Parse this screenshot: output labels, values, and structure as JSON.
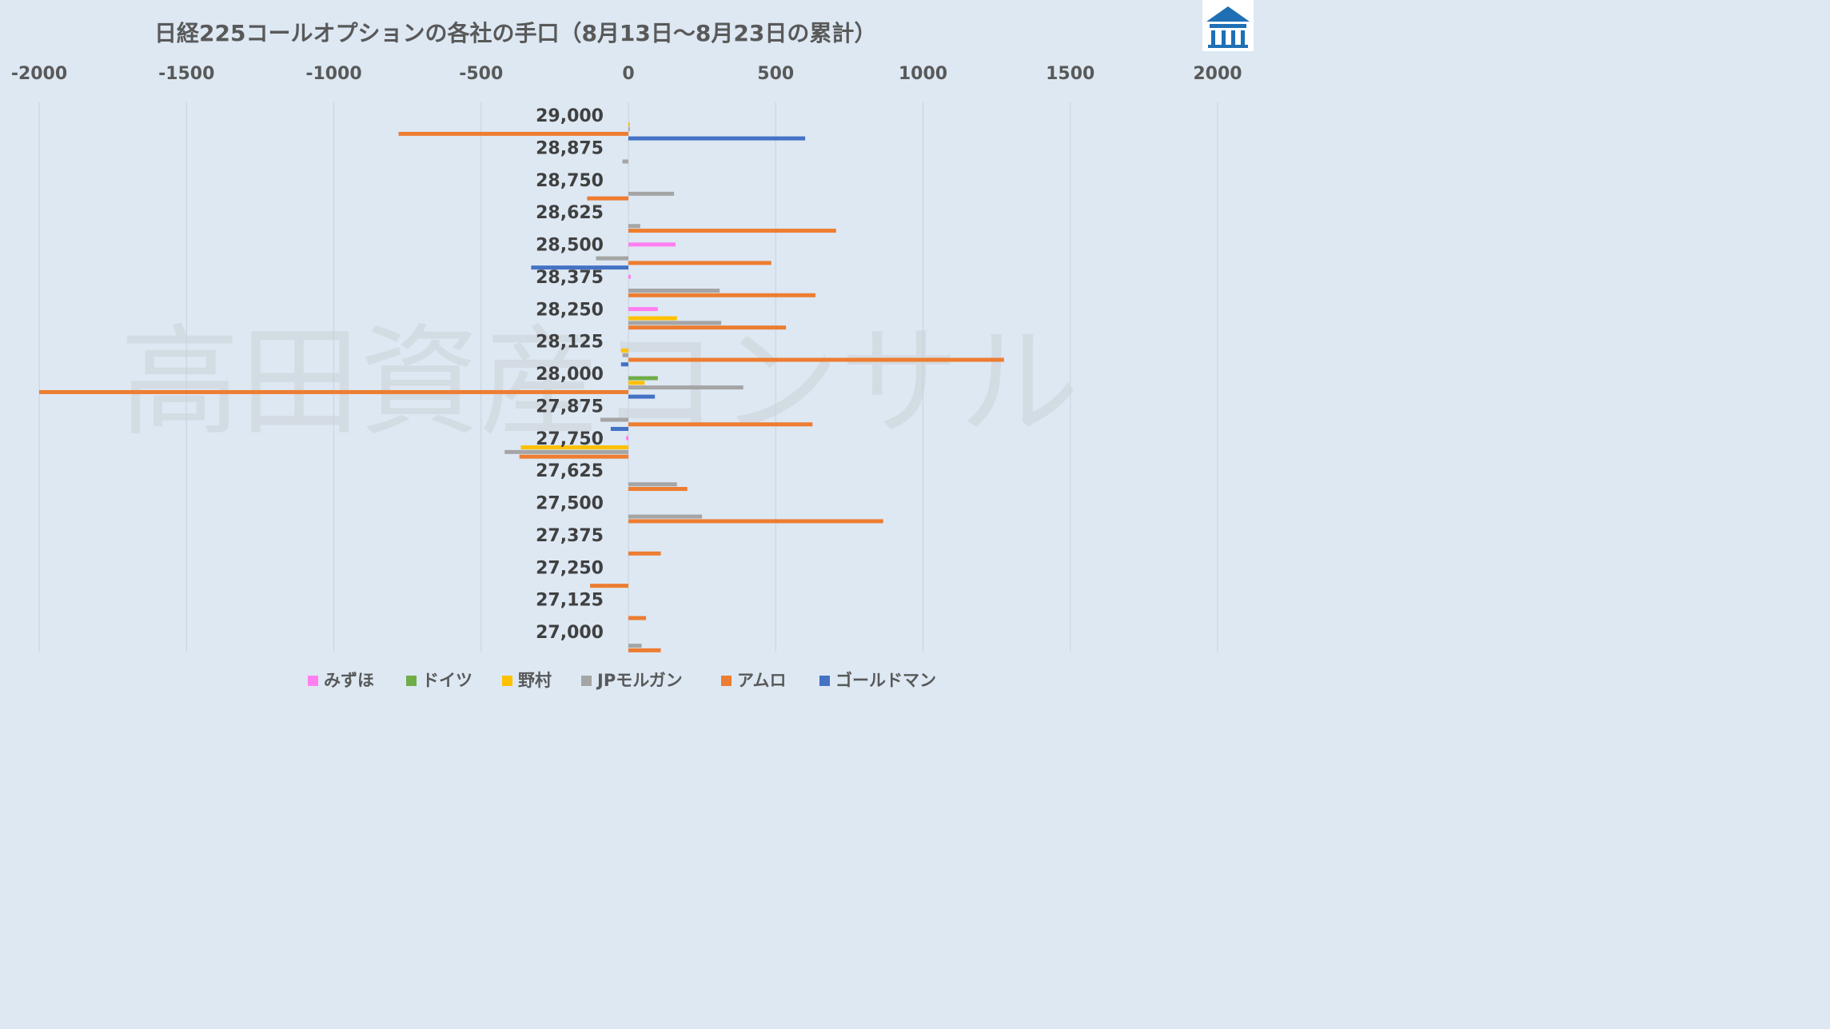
{
  "chart_data": {
    "type": "bar",
    "orientation": "horizontal",
    "title": "日経225コールオプションの各社の手口（8月13日～8月23日の累計）",
    "xlim": [
      -2000,
      2000
    ],
    "xticks": [
      "-2000",
      "-1500",
      "-1000",
      "-500",
      "0",
      "500",
      "1000",
      "1500",
      "2000"
    ],
    "xaxis_position": "top",
    "grid": "vertical",
    "legend_position": "bottom",
    "watermark": "高田資産コンサル",
    "categories": [
      "29,000",
      "28,875",
      "28,750",
      "28,625",
      "28,500",
      "28,375",
      "28,250",
      "28,125",
      "28,000",
      "27,875",
      "27,750",
      "27,625",
      "27,500",
      "27,375",
      "27,250",
      "27,125",
      "27,000"
    ],
    "series": [
      {
        "name": "みずほ",
        "color": "#ff7ff0",
        "values": [
          0,
          0,
          0,
          0,
          160,
          8,
          100,
          0,
          0,
          0,
          -8,
          0,
          0,
          0,
          0,
          0,
          0
        ]
      },
      {
        "name": "ドイツ",
        "color": "#70ad47",
        "values": [
          0,
          0,
          0,
          0,
          0,
          0,
          0,
          0,
          100,
          0,
          0,
          0,
          0,
          0,
          0,
          0,
          0
        ]
      },
      {
        "name": "野村",
        "color": "#ffc000",
        "values": [
          5,
          0,
          0,
          0,
          0,
          0,
          165,
          -25,
          55,
          0,
          -365,
          0,
          0,
          0,
          0,
          0,
          0
        ]
      },
      {
        "name": "JPモルガン",
        "color": "#a5a5a5",
        "values": [
          5,
          -20,
          155,
          40,
          -110,
          310,
          315,
          -20,
          390,
          -95,
          -420,
          165,
          250,
          0,
          0,
          0,
          45
        ]
      },
      {
        "name": "アムロ",
        "color": "#ed7d31",
        "values": [
          -780,
          0,
          -140,
          705,
          485,
          635,
          535,
          1275,
          -2000,
          625,
          -370,
          200,
          865,
          110,
          -130,
          60,
          110
        ]
      },
      {
        "name": "ゴールドマン",
        "color": "#4472c4",
        "values": [
          600,
          0,
          0,
          0,
          -330,
          0,
          0,
          -25,
          90,
          -60,
          0,
          0,
          0,
          0,
          0,
          0,
          0
        ]
      }
    ]
  },
  "logo": {
    "name": "company-logo",
    "colors": [
      "#1f6fb5",
      "#ffffff"
    ]
  }
}
